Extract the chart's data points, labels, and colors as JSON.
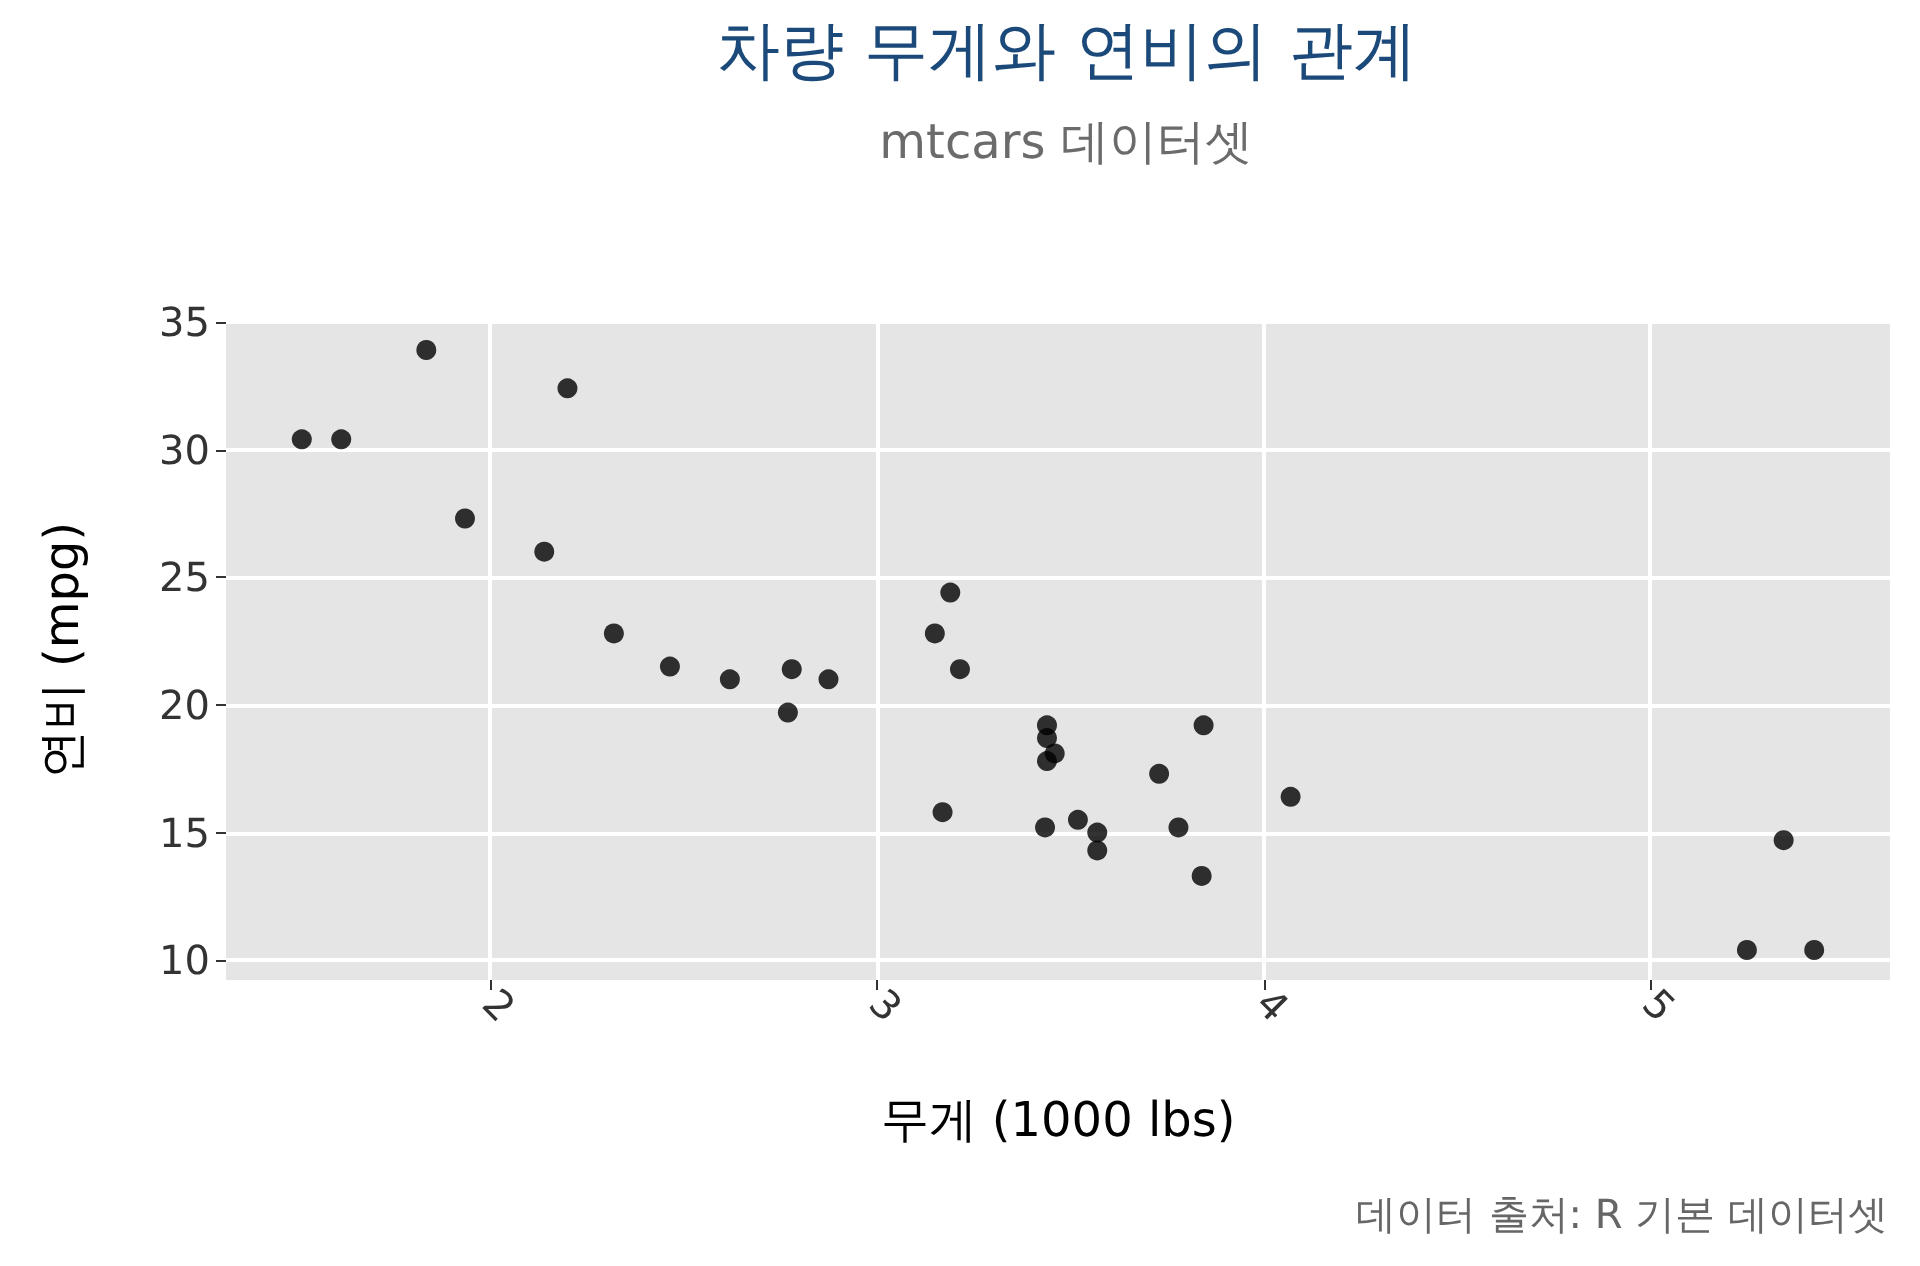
{
  "chart_data": {
    "type": "scatter",
    "title": "차량 무게와 연비의 관계",
    "subtitle": "mtcars 데이터셋",
    "xlabel": "무게 (1000 lbs)",
    "ylabel": "연비 (mpg)",
    "annotations": [
      "데이터 출처: R 기본 데이터셋"
    ],
    "x": [
      2.62,
      2.875,
      2.32,
      3.215,
      3.44,
      3.46,
      3.57,
      3.19,
      3.15,
      3.44,
      3.44,
      4.07,
      3.73,
      3.78,
      5.25,
      5.424,
      5.345,
      2.2,
      1.615,
      1.835,
      2.465,
      3.52,
      3.435,
      3.84,
      3.845,
      1.935,
      2.14,
      1.513,
      3.17,
      2.77,
      3.57,
      2.78
    ],
    "values": [
      21.0,
      21.0,
      22.8,
      21.4,
      18.7,
      18.1,
      14.3,
      24.4,
      22.8,
      19.2,
      17.8,
      16.4,
      17.3,
      15.2,
      10.4,
      10.4,
      14.7,
      32.4,
      30.4,
      33.9,
      21.5,
      15.5,
      15.2,
      13.3,
      19.2,
      27.3,
      26.0,
      30.4,
      15.8,
      19.7,
      15.0,
      21.4
    ],
    "color": "#000000",
    "marker": "circle",
    "xlim": [
      1.317,
      5.62
    ],
    "xticks": [
      2,
      3,
      4,
      5
    ],
    "ylim": [
      9.225,
      35.075
    ],
    "yticks": [
      10,
      15,
      20,
      25,
      30,
      35
    ],
    "grid": true
  }
}
